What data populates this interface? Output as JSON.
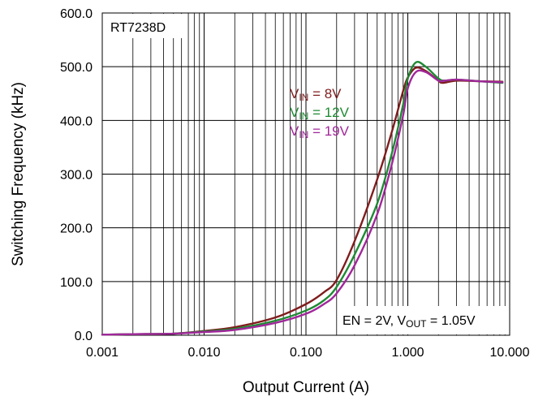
{
  "chart_data": {
    "type": "line",
    "xlabel": "Output Current (A)",
    "ylabel": "Switching Frequency (kHz)",
    "x_scale": "log",
    "xlim": [
      0.001,
      10
    ],
    "ylim": [
      0,
      600
    ],
    "x_ticks": [
      0.001,
      0.01,
      0.1,
      1,
      10
    ],
    "x_tick_labels": [
      "0.001",
      "0.010",
      "0.100",
      "1.000",
      "10.000"
    ],
    "y_ticks": [
      0,
      100,
      200,
      300,
      400,
      500,
      600
    ],
    "y_tick_labels": [
      "0.0",
      "100.0",
      "200.0",
      "300.0",
      "400.0",
      "500.0",
      "600.0"
    ],
    "grid": true,
    "annotations": {
      "part_number": "RT7238D",
      "conditions_parts": [
        "EN = 2V, V",
        "OUT",
        " = 1.05V"
      ]
    },
    "series": [
      {
        "name_parts": [
          "V",
          "IN",
          " =  8V"
        ],
        "color": "#7f1d1d",
        "x": [
          0.001,
          0.002,
          0.005,
          0.01,
          0.02,
          0.05,
          0.1,
          0.15,
          0.2,
          0.3,
          0.5,
          0.7,
          0.9,
          1.0,
          1.2,
          1.5,
          2.0,
          2.2,
          3.0,
          5.0,
          8.5
        ],
        "y": [
          1,
          2,
          3,
          8,
          15,
          33,
          58,
          80,
          103,
          175,
          290,
          380,
          455,
          480,
          498,
          492,
          474,
          470,
          474,
          473,
          472
        ]
      },
      {
        "name_parts": [
          "V",
          "IN",
          " =  12V"
        ],
        "color": "#1e8a33",
        "x": [
          0.001,
          0.002,
          0.005,
          0.01,
          0.02,
          0.05,
          0.1,
          0.15,
          0.2,
          0.3,
          0.5,
          0.7,
          0.9,
          1.0,
          1.2,
          1.5,
          2.0,
          2.3,
          3.0,
          5.0,
          8.5
        ],
        "y": [
          1,
          2,
          3,
          7,
          12,
          27,
          46,
          65,
          90,
          150,
          245,
          340,
          430,
          478,
          508,
          500,
          478,
          474,
          476,
          473,
          470
        ]
      },
      {
        "name_parts": [
          "V",
          "IN",
          " =  19V"
        ],
        "color": "#a0279a",
        "x": [
          0.001,
          0.002,
          0.005,
          0.01,
          0.02,
          0.05,
          0.1,
          0.15,
          0.2,
          0.3,
          0.5,
          0.7,
          0.9,
          1.0,
          1.2,
          1.5,
          2.0,
          2.3,
          3.0,
          5.0,
          8.5
        ],
        "y": [
          1,
          2,
          3,
          6,
          10,
          23,
          40,
          58,
          78,
          130,
          225,
          320,
          410,
          460,
          490,
          490,
          474,
          474,
          476,
          473,
          471
        ]
      }
    ]
  }
}
